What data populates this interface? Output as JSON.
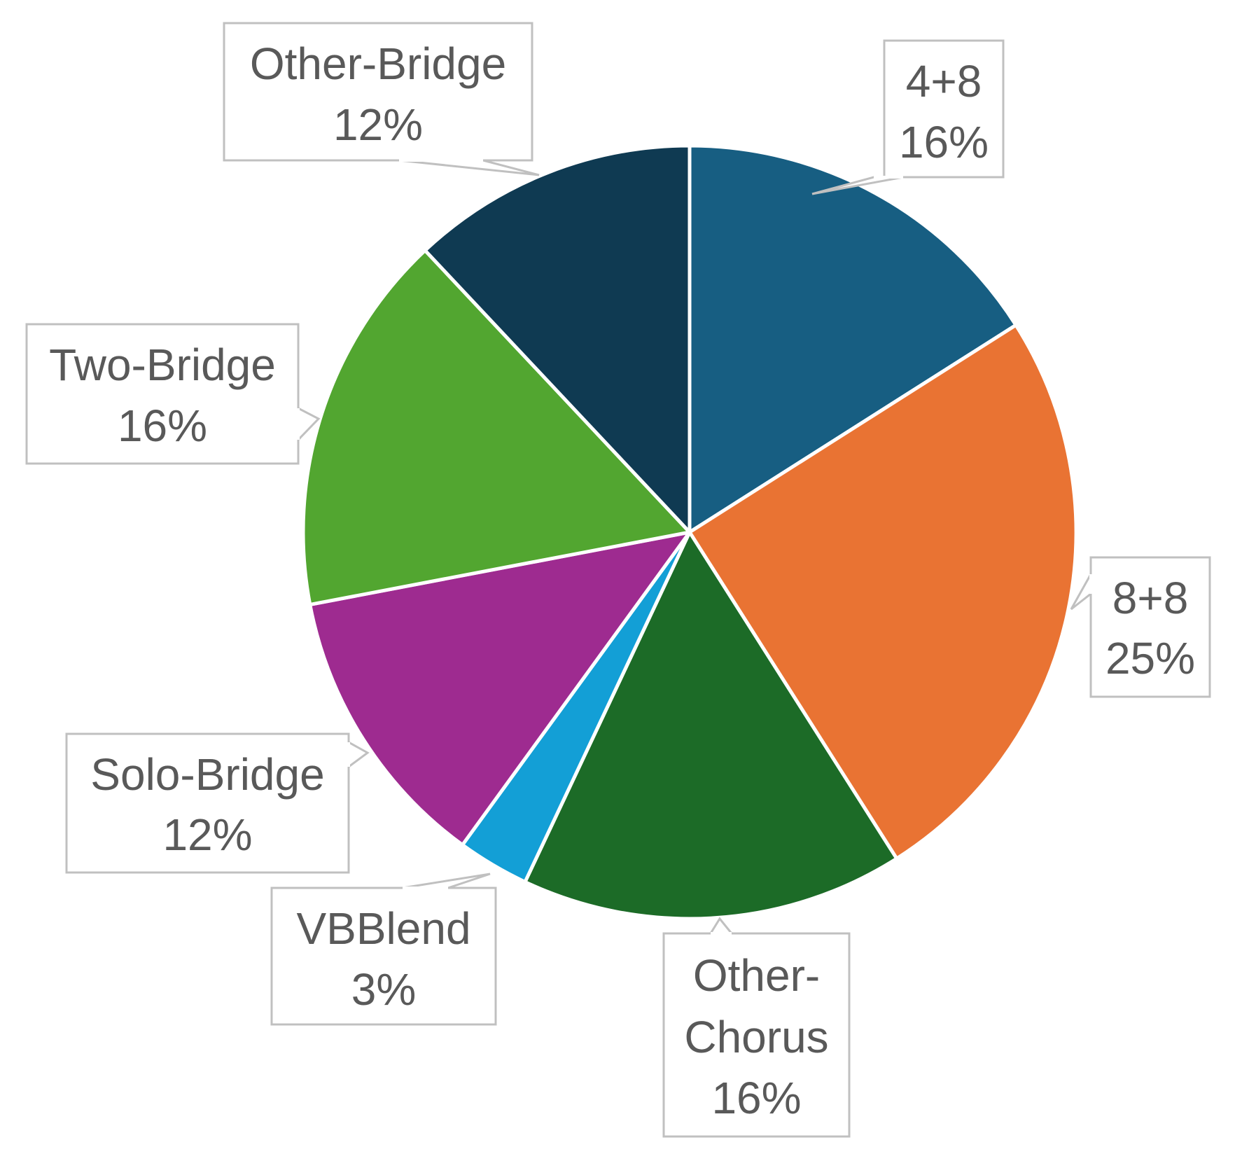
{
  "chart_data": {
    "type": "pie",
    "title": "",
    "slices": [
      {
        "label": "4+8",
        "value": 16,
        "value_label": "16%",
        "color": "#175E82"
      },
      {
        "label": "8+8",
        "value": 25,
        "value_label": "25%",
        "color": "#E97333"
      },
      {
        "label": "Other-Chorus",
        "value": 16,
        "value_label": "16%",
        "color": "#1C6B27"
      },
      {
        "label": "VBBlend",
        "value": 3,
        "value_label": "3%",
        "color": "#139FD6"
      },
      {
        "label": "Solo-Bridge",
        "value": 12,
        "value_label": "12%",
        "color": "#9E2B90"
      },
      {
        "label": "Two-Bridge",
        "value": 16,
        "value_label": "16%",
        "color": "#52A630"
      },
      {
        "label": "Other-Bridge",
        "value": 12,
        "value_label": "12%",
        "color": "#0F3A52"
      }
    ],
    "legend": "none",
    "data_labels": "callouts"
  }
}
